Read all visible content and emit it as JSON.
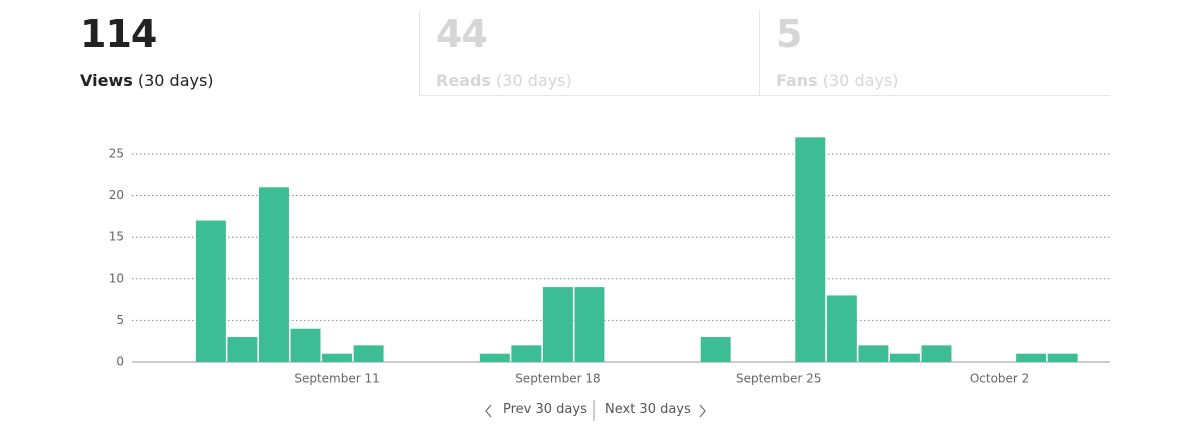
{
  "tabs": [
    {
      "value": 114,
      "label": "Views",
      "period": "(30 days)"
    },
    {
      "value": 44,
      "label": "Reads",
      "period": "(30 days)"
    },
    {
      "value": 5,
      "label": "Fans",
      "period": "(30 days)"
    }
  ],
  "chart_data": {
    "type": "bar",
    "categories": [
      null,
      null,
      null,
      null,
      null,
      null,
      "September 11",
      null,
      null,
      null,
      null,
      null,
      null,
      "September 18",
      null,
      null,
      null,
      null,
      null,
      null,
      "September 25",
      null,
      null,
      null,
      null,
      null,
      null,
      "October 2",
      null,
      null,
      null
    ],
    "values": [
      0,
      0,
      17,
      3,
      21,
      4,
      1,
      2,
      0,
      0,
      0,
      1,
      2,
      9,
      9,
      0,
      0,
      0,
      3,
      0,
      0,
      27,
      8,
      2,
      1,
      2,
      0,
      0,
      1,
      1,
      0
    ],
    "color": "#3dbd93",
    "ylim": [
      0,
      25
    ],
    "yticks": [
      0,
      5,
      10,
      15,
      20,
      25
    ],
    "grid": true
  },
  "nav": {
    "prev": "Prev 30 days",
    "next": "Next 30 days"
  }
}
